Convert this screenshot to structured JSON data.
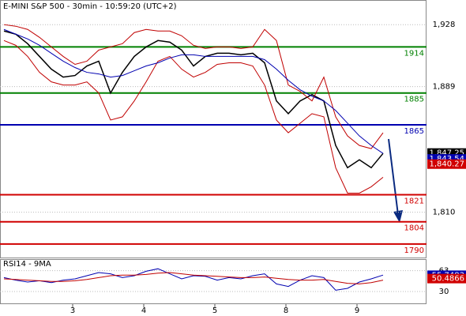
{
  "chart_data": [
    {
      "type": "price",
      "title": "E-MINI S&P 500 - 30min - 10:59:20 (UTC+2)",
      "ylim": [
        1781,
        1943.5
      ],
      "yticks": [
        {
          "value": 1928,
          "label": "1,928"
        },
        {
          "value": 1889,
          "label": "1,889"
        },
        {
          "value": 1810,
          "label": "1,810"
        }
      ],
      "levels": [
        {
          "value": 1914,
          "color": "#008000"
        },
        {
          "value": 1885,
          "color": "#008000"
        },
        {
          "value": 1865,
          "color": "#0000b0"
        },
        {
          "value": 1821,
          "color": "#d00000"
        },
        {
          "value": 1804,
          "color": "#d00000"
        },
        {
          "value": 1790,
          "color": "#d00000"
        }
      ],
      "x_labels": [
        "3",
        "4",
        "5",
        "8",
        "9"
      ],
      "series": [
        {
          "name": "price",
          "color": "#000000",
          "values": [
            1924,
            1922,
            1916,
            1908,
            1900,
            1895,
            1896,
            1902,
            1905,
            1885,
            1898,
            1908,
            1914,
            1918,
            1917,
            1912,
            1902,
            1908,
            1910,
            1910,
            1909,
            1910,
            1904,
            1880,
            1872,
            1880,
            1884,
            1880,
            1852,
            1838,
            1843,
            1838,
            1847
          ]
        },
        {
          "name": "upper",
          "color": "#c00000",
          "values": [
            1928,
            1927,
            1925,
            1920,
            1914,
            1908,
            1903,
            1905,
            1912,
            1914,
            1916,
            1923,
            1925,
            1924,
            1924,
            1921,
            1915,
            1913,
            1914,
            1914,
            1913,
            1914,
            1925,
            1918,
            1890,
            1886,
            1880,
            1895,
            1870,
            1858,
            1852,
            1850,
            1860
          ]
        },
        {
          "name": "lower",
          "color": "#c00000",
          "values": [
            1918,
            1915,
            1908,
            1898,
            1892,
            1890,
            1890,
            1892,
            1885,
            1868,
            1870,
            1880,
            1892,
            1905,
            1908,
            1900,
            1895,
            1898,
            1903,
            1904,
            1904,
            1902,
            1890,
            1868,
            1860,
            1866,
            1872,
            1870,
            1838,
            1822,
            1822,
            1826,
            1832
          ]
        },
        {
          "name": "ma",
          "color": "#0000b0",
          "values": [
            1925,
            1922,
            1919,
            1915,
            1910,
            1905,
            1901,
            1898,
            1897,
            1895,
            1896,
            1899,
            1902,
            1904,
            1907,
            1909,
            1909,
            1908,
            1908,
            1908,
            1908,
            1908,
            1906,
            1900,
            1893,
            1887,
            1883,
            1880,
            1874,
            1866,
            1858,
            1852,
            1847
          ]
        }
      ],
      "last_labels": [
        {
          "value": 1847.25,
          "label": "1,847.25",
          "color": "#000000"
        },
        {
          "value": 1843.54,
          "label": "1,843.54",
          "color": "#0000b0"
        },
        {
          "value": 1840.27,
          "label": "1,840.27",
          "color": "#d00000"
        }
      ]
    },
    {
      "type": "rsi",
      "title": "RSI14 - 9MA",
      "ylim": [
        10,
        80
      ],
      "yticks": [
        63,
        30
      ],
      "series": [
        {
          "name": "rsi",
          "color": "#0000b0",
          "values": [
            52,
            48,
            45,
            47,
            44,
            48,
            50,
            55,
            60,
            58,
            52,
            55,
            62,
            66,
            58,
            50,
            55,
            54,
            48,
            52,
            50,
            55,
            58,
            42,
            38,
            48,
            55,
            52,
            32,
            35,
            45,
            50,
            56
          ]
        },
        {
          "name": "ma",
          "color": "#c00000",
          "values": [
            50,
            49,
            48,
            47,
            46,
            46,
            47,
            49,
            52,
            55,
            56,
            56,
            57,
            59,
            60,
            58,
            56,
            55,
            54,
            53,
            52,
            52,
            53,
            51,
            49,
            48,
            48,
            49,
            46,
            43,
            42,
            44,
            48
          ]
        }
      ],
      "last_labels": [
        {
          "value": 55.7483,
          "label": "55.7483",
          "color": "#0000b0"
        },
        {
          "value": 50.4866,
          "label": "50.4866",
          "color": "#d00000"
        }
      ]
    }
  ]
}
